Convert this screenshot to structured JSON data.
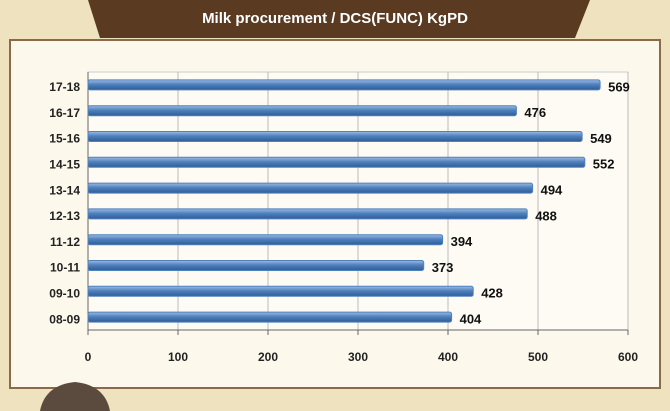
{
  "chart_data": {
    "type": "bar",
    "orientation": "horizontal",
    "title": "Milk procurement / DCS(FUNC) KgPD",
    "categories": [
      "17-18",
      "16-17",
      "15-16",
      "14-15",
      "13-14",
      "12-13",
      "11-12",
      "10-11",
      "09-10",
      "08-09"
    ],
    "values": [
      569,
      476,
      549,
      552,
      494,
      488,
      394,
      373,
      428,
      404
    ],
    "color": "#4f81bd",
    "xlim": [
      0,
      600
    ],
    "xticks": [
      0,
      100,
      200,
      300,
      400,
      500,
      600
    ],
    "grid": true
  }
}
